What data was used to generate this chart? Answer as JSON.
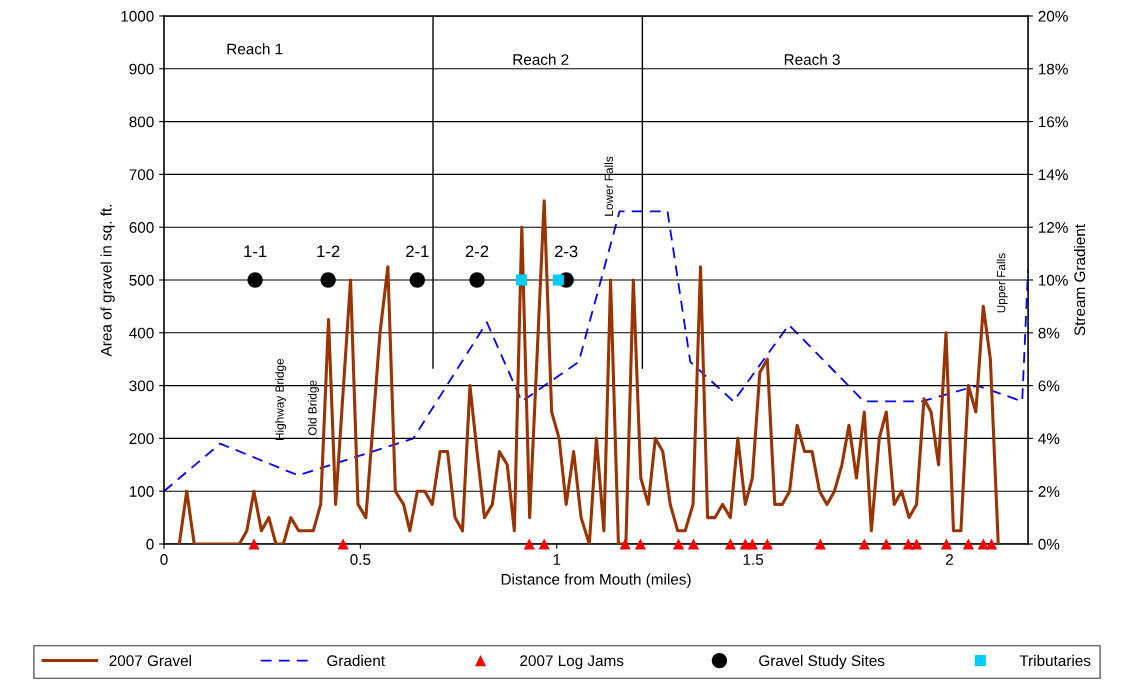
{
  "chart_data": {
    "type": "line",
    "xlabel": "Distance from Mouth (miles)",
    "ylabel": "Area of gravel in sq. ft.",
    "y2label": "Stream Gradient",
    "xlim": [
      0,
      2.2
    ],
    "xticks": [
      0,
      0.5,
      1,
      1.5,
      2
    ],
    "ylim": [
      0,
      1000
    ],
    "yticks": [
      0,
      100,
      200,
      300,
      400,
      500,
      600,
      700,
      800,
      900,
      1000
    ],
    "y2lim": [
      0,
      20
    ],
    "y2ticks": [
      {
        "value": 0,
        "label": "0%"
      },
      {
        "value": 2,
        "label": "2%"
      },
      {
        "value": 4,
        "label": "4%"
      },
      {
        "value": 6,
        "label": "6%"
      },
      {
        "value": 8,
        "label": "8%"
      },
      {
        "value": 10,
        "label": "10%"
      },
      {
        "value": 12,
        "label": "12%"
      },
      {
        "value": 14,
        "label": "14%"
      },
      {
        "value": 16,
        "label": "16%"
      },
      {
        "value": 18,
        "label": "18%"
      },
      {
        "value": 20,
        "label": "20%"
      }
    ],
    "grid": "y",
    "legend": "bottom",
    "series": [
      {
        "name": "2007 Gravel",
        "color": "#993300",
        "marker": "none",
        "line_style": "solid",
        "x": [
          0.039,
          0.058,
          0.077,
          0.192,
          0.211,
          0.229,
          0.248,
          0.267,
          0.285,
          0.304,
          0.323,
          0.343,
          0.38,
          0.399,
          0.419,
          0.437,
          0.475,
          0.494,
          0.514,
          0.55,
          0.57,
          0.589,
          0.61,
          0.626,
          0.645,
          0.664,
          0.683,
          0.703,
          0.722,
          0.741,
          0.76,
          0.779,
          0.797,
          0.816,
          0.836,
          0.854,
          0.874,
          0.892,
          0.911,
          0.931,
          0.968,
          0.987,
          1.006,
          1.024,
          1.043,
          1.062,
          1.083,
          1.101,
          1.12,
          1.137,
          1.157,
          1.176,
          1.195,
          1.214,
          1.233,
          1.251,
          1.27,
          1.289,
          1.308,
          1.327,
          1.347,
          1.366,
          1.384,
          1.403,
          1.422,
          1.442,
          1.461,
          1.48,
          1.498,
          1.517,
          1.536,
          1.555,
          1.574,
          1.593,
          1.612,
          1.631,
          1.65,
          1.669,
          1.688,
          1.707,
          1.726,
          1.744,
          1.763,
          1.783,
          1.801,
          1.821,
          1.839,
          1.859,
          1.878,
          1.897,
          1.916,
          1.935,
          1.953,
          1.972,
          1.991,
          2.01,
          2.029,
          2.048,
          2.067,
          2.086,
          2.104,
          2.124
        ],
        "values": [
          0,
          100,
          0,
          0,
          25,
          100,
          25,
          50,
          0,
          0,
          50,
          25,
          25,
          75,
          425,
          75,
          500,
          75,
          50,
          400,
          525,
          100,
          75,
          25,
          100,
          100,
          75,
          175,
          175,
          50,
          25,
          300,
          175,
          50,
          75,
          175,
          150,
          25,
          600,
          50,
          650,
          250,
          200,
          75,
          175,
          50,
          0,
          200,
          25,
          500,
          0,
          0,
          500,
          125,
          75,
          200,
          175,
          75,
          25,
          25,
          75,
          525,
          50,
          50,
          75,
          50,
          200,
          75,
          125,
          325,
          350,
          75,
          75,
          100,
          225,
          175,
          175,
          100,
          75,
          100,
          150,
          225,
          125,
          250,
          25,
          200,
          250,
          75,
          100,
          50,
          75,
          275,
          250,
          150,
          400,
          25,
          25,
          300,
          250,
          450,
          350,
          0
        ]
      },
      {
        "name": "Gradient",
        "axis": "y2",
        "color": "#0000ff",
        "marker": "none",
        "line_style": "dashed",
        "x": [
          0,
          0.143,
          0.342,
          0.635,
          0.822,
          0.911,
          1.056,
          1.16,
          1.282,
          1.34,
          1.45,
          1.591,
          1.782,
          1.93,
          2.071,
          2.185,
          2.2
        ],
        "values": [
          2.0,
          3.8,
          2.6,
          4.0,
          8.4,
          5.4,
          6.9,
          12.6,
          12.6,
          6.9,
          5.4,
          8.3,
          5.4,
          5.4,
          6.0,
          5.4,
          10.4
        ]
      },
      {
        "name": "2007 Log Jams",
        "type": "scatter",
        "color": "#ff0000",
        "marker": "triangle",
        "x": [
          0.229,
          0.456,
          0.93,
          0.968,
          1.174,
          1.213,
          1.31,
          1.348,
          1.442,
          1.48,
          1.498,
          1.536,
          1.671,
          1.783,
          1.839,
          1.895,
          1.916,
          1.992,
          2.048,
          2.086,
          2.107
        ],
        "values": [
          0,
          0,
          0,
          0,
          0,
          0,
          0,
          0,
          0,
          0,
          0,
          0,
          0,
          0,
          0,
          0,
          0,
          0,
          0,
          0,
          0
        ]
      },
      {
        "name": "Gravel Study Sites",
        "type": "scatter",
        "color": "#000000",
        "marker": "circle",
        "x": [
          0.232,
          0.418,
          0.645,
          0.797,
          1.024
        ],
        "values": [
          500,
          500,
          500,
          500,
          500
        ]
      },
      {
        "name": "Tributaries",
        "type": "scatter",
        "color": "#00ccff",
        "marker": "square",
        "x": [
          0.91,
          1.004
        ],
        "values": [
          500,
          500
        ]
      }
    ],
    "ref_lines": [
      {
        "axis": "x",
        "value": 0.685,
        "color": "#000000",
        "line_style": "solid"
      },
      {
        "axis": "x",
        "value": 1.218,
        "color": "#000000",
        "line_style": "solid"
      }
    ],
    "annotations": [
      "Reach 1",
      "Reach 2",
      "Reach 3",
      {
        "text": "1-1",
        "x": 0.232,
        "y": 500
      },
      {
        "text": "1-2",
        "x": 0.418,
        "y": 500
      },
      {
        "text": "2-1",
        "x": 0.645,
        "y": 500
      },
      {
        "text": "2-2",
        "x": 0.797,
        "y": 500
      },
      {
        "text": "2-3",
        "x": 1.024,
        "y": 500
      },
      "Highway Bridge",
      "Old Bridge",
      "Lower Falls",
      "Upper Falls"
    ]
  }
}
